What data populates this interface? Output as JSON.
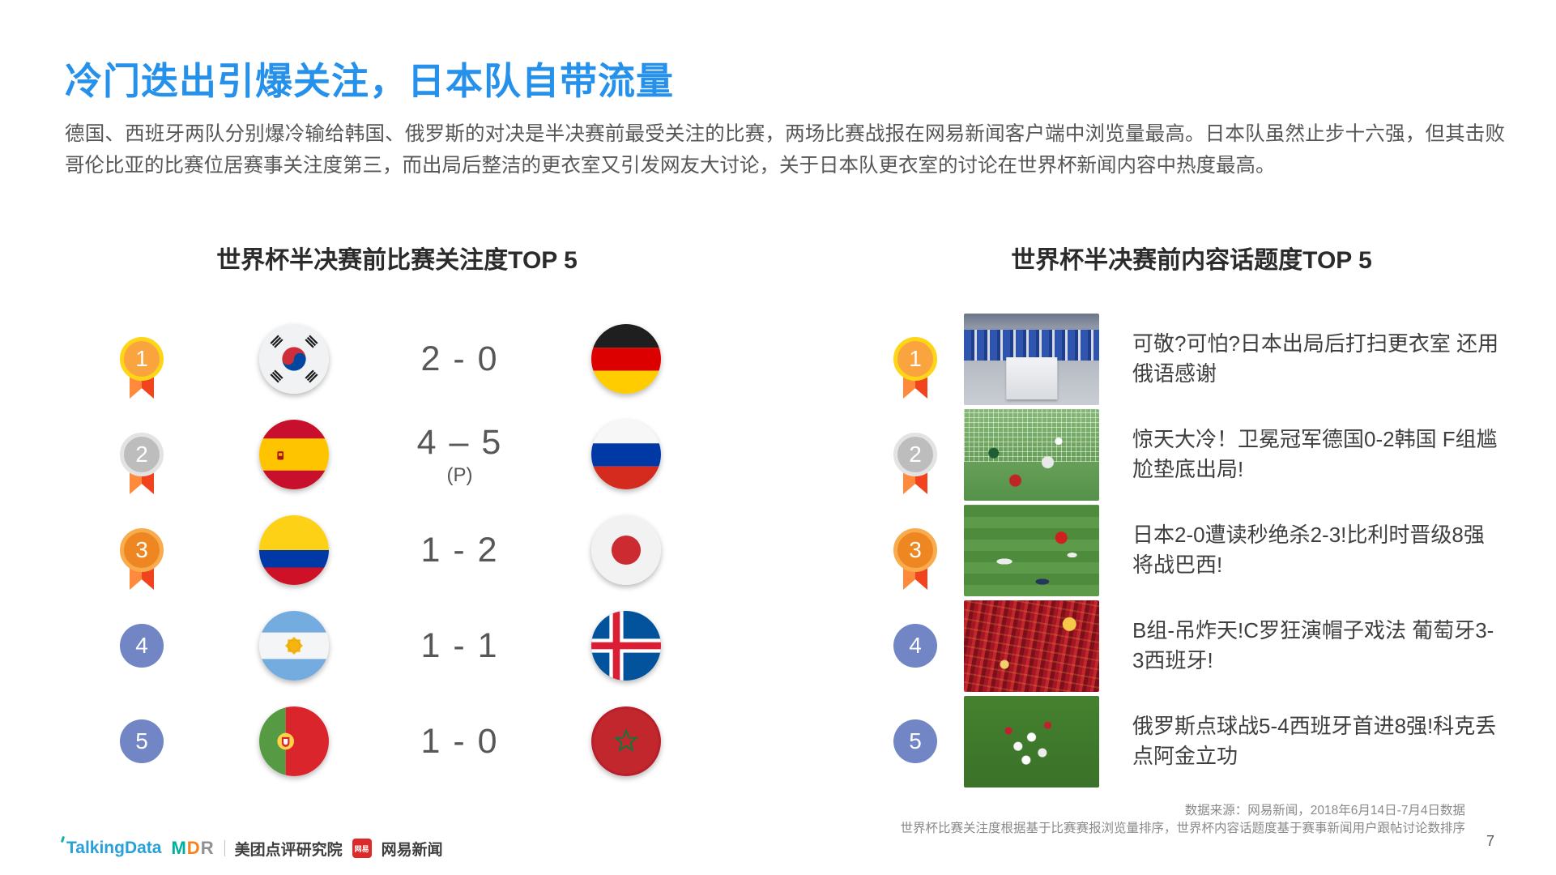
{
  "page": {
    "title": "冷门迭出引爆关注，日本队自带流量",
    "paragraph": "德国、西班牙两队分别爆冷输给韩国、俄罗斯的对决是半决赛前最受关注的比赛，两场比赛战报在网易新闻客户端中浏览量最高。日本队虽然止步十六强，但其击败哥伦比亚的比赛位居赛事关注度第三，而出局后整洁的更衣室又引发网友大讨论，关于日本队更衣室的讨论在世界杯新闻内容中热度最高。",
    "page_number": "7"
  },
  "left_panel": {
    "title": "世界杯半决赛前比赛关注度TOP 5",
    "rows": [
      {
        "rank": "1",
        "medal": "gold",
        "team1": {
          "id": "kr",
          "name": "south-korea"
        },
        "score": "2 - 0",
        "score_note": "",
        "team2": {
          "id": "de",
          "name": "germany"
        }
      },
      {
        "rank": "2",
        "medal": "silver",
        "team1": {
          "id": "es",
          "name": "spain"
        },
        "score": "4 – 5",
        "score_note": "(P)",
        "team2": {
          "id": "ru",
          "name": "russia"
        }
      },
      {
        "rank": "3",
        "medal": "bronze",
        "team1": {
          "id": "co",
          "name": "colombia"
        },
        "score": "1 - 2",
        "score_note": "",
        "team2": {
          "id": "jp",
          "name": "japan"
        }
      },
      {
        "rank": "4",
        "medal": "plain",
        "team1": {
          "id": "ar",
          "name": "argentina"
        },
        "score": "1 - 1",
        "score_note": "",
        "team2": {
          "id": "is",
          "name": "iceland"
        }
      },
      {
        "rank": "5",
        "medal": "plain",
        "team1": {
          "id": "pt",
          "name": "portugal"
        },
        "score": "1 - 0",
        "score_note": "",
        "team2": {
          "id": "ma",
          "name": "morocco"
        }
      }
    ]
  },
  "right_panel": {
    "title": "世界杯半决赛前内容话题度TOP 5",
    "rows": [
      {
        "rank": "1",
        "medal": "gold",
        "thumb": "locker-room",
        "headline": "可敬?可怕?日本出局后打扫更衣室 还用俄语感谢"
      },
      {
        "rank": "2",
        "medal": "silver",
        "thumb": "germany-korea-goal",
        "headline": "惊天大冷！卫冕冠军德国0-2韩国 F组尴尬垫底出局!"
      },
      {
        "rank": "3",
        "medal": "bronze",
        "thumb": "japan-belgium-field",
        "headline": "日本2-0遭读秒绝杀2-3!比利时晋级8强将战巴西!"
      },
      {
        "rank": "4",
        "medal": "plain",
        "thumb": "portugal-spain-crowd",
        "headline": "B组-吊炸天!C罗狂演帽子戏法 葡萄牙3-3西班牙!"
      },
      {
        "rank": "5",
        "medal": "plain",
        "thumb": "russia-spain-celebration",
        "headline": "俄罗斯点球战5-4西班牙首进8强!科克丢点阿金立功"
      }
    ]
  },
  "footer": {
    "source_line1": "数据来源：网易新闻，2018年6月14日-7月4日数据",
    "source_line2": "世界杯比赛关注度根据基于比赛赛报浏览量排序，世界杯内容话题度基于赛事新闻用户跟帖讨论数排序",
    "logos": {
      "talkingdata": "TalkingData",
      "mdr_letters": [
        {
          "ch": "M",
          "color": "#00AFA0"
        },
        {
          "ch": "D",
          "color": "#F5821F"
        },
        {
          "ch": "R",
          "color": "#8E9093"
        }
      ],
      "mdr_label": "美团点评研究院",
      "netease_icon": "网易",
      "netease_label": "网易新闻"
    }
  },
  "colors": {
    "title_blue": "#2591EB",
    "ribbon_orange": "#F1431D",
    "medal_gold_ring": "#FFD517",
    "medal_silver_ring": "#E3E3E3",
    "medal_bronze_ring": "#F8AC4E",
    "medal_plain_blue": "#7285C5"
  }
}
